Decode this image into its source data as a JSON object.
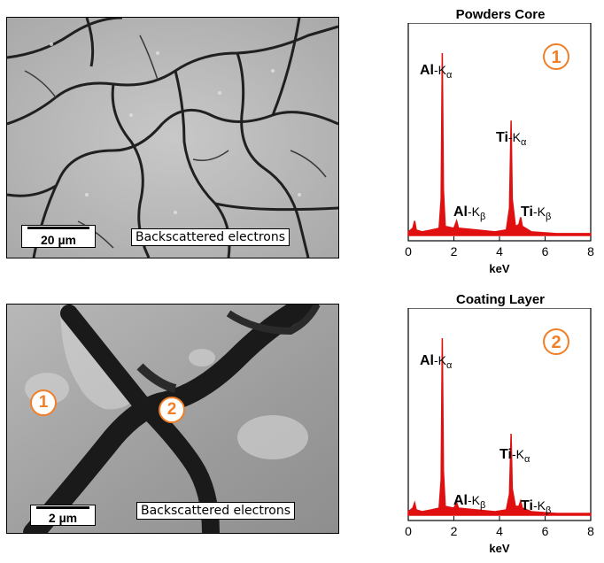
{
  "panels": [
    {
      "sem_caption": "Backscattered electrons",
      "scale_label": "20 µm",
      "markers": []
    },
    {
      "sem_caption": "Backscattered electrons",
      "scale_label": "2 µm",
      "markers": [
        "1",
        "2"
      ]
    }
  ],
  "chart_data": [
    {
      "type": "line",
      "title": "Powders Core",
      "xlabel": "keV",
      "ylabel": "",
      "xlim": [
        0,
        8
      ],
      "xticks": [
        0,
        2,
        4,
        6,
        8
      ],
      "y_axis_shown": false,
      "badge": "1",
      "color": "#e01010",
      "spectrum": [
        [
          0,
          0.02
        ],
        [
          0.2,
          0.04
        ],
        [
          0.28,
          0.08
        ],
        [
          0.35,
          0.03
        ],
        [
          0.6,
          0.02
        ],
        [
          1.0,
          0.03
        ],
        [
          1.35,
          0.04
        ],
        [
          1.44,
          0.2
        ],
        [
          1.49,
          1.0
        ],
        [
          1.54,
          0.25
        ],
        [
          1.62,
          0.05
        ],
        [
          2.0,
          0.04
        ],
        [
          2.12,
          0.08
        ],
        [
          2.2,
          0.04
        ],
        [
          3.0,
          0.03
        ],
        [
          3.8,
          0.02
        ],
        [
          4.3,
          0.03
        ],
        [
          4.44,
          0.15
        ],
        [
          4.51,
          0.63
        ],
        [
          4.56,
          0.2
        ],
        [
          4.7,
          0.05
        ],
        [
          4.85,
          0.06
        ],
        [
          4.93,
          0.1
        ],
        [
          5.0,
          0.05
        ],
        [
          5.4,
          0.02
        ],
        [
          6.5,
          0.01
        ],
        [
          8.0,
          0.01
        ]
      ],
      "peaks": [
        {
          "element": "Al",
          "line": "K",
          "sub": "α"
        },
        {
          "element": "Al",
          "line": "K",
          "sub": "β"
        },
        {
          "element": "Ti",
          "line": "K",
          "sub": "α"
        },
        {
          "element": "Ti",
          "line": "K",
          "sub": "β"
        }
      ]
    },
    {
      "type": "line",
      "title": "Coating Layer",
      "xlabel": "keV",
      "ylabel": "",
      "xlim": [
        0,
        8
      ],
      "xticks": [
        0,
        2,
        4,
        6,
        8
      ],
      "y_axis_shown": false,
      "badge": "2",
      "color": "#e01010",
      "spectrum": [
        [
          0,
          0.02
        ],
        [
          0.2,
          0.04
        ],
        [
          0.28,
          0.07
        ],
        [
          0.35,
          0.03
        ],
        [
          0.6,
          0.02
        ],
        [
          1.0,
          0.03
        ],
        [
          1.35,
          0.04
        ],
        [
          1.44,
          0.2
        ],
        [
          1.49,
          1.0
        ],
        [
          1.54,
          0.25
        ],
        [
          1.62,
          0.05
        ],
        [
          2.0,
          0.04
        ],
        [
          2.12,
          0.07
        ],
        [
          2.2,
          0.04
        ],
        [
          3.0,
          0.03
        ],
        [
          3.8,
          0.02
        ],
        [
          4.3,
          0.03
        ],
        [
          4.44,
          0.12
        ],
        [
          4.51,
          0.46
        ],
        [
          4.56,
          0.15
        ],
        [
          4.7,
          0.05
        ],
        [
          4.85,
          0.05
        ],
        [
          4.93,
          0.08
        ],
        [
          5.0,
          0.04
        ],
        [
          5.4,
          0.02
        ],
        [
          6.5,
          0.01
        ],
        [
          8.0,
          0.01
        ]
      ],
      "peaks": [
        {
          "element": "Al",
          "line": "K",
          "sub": "α"
        },
        {
          "element": "Al",
          "line": "K",
          "sub": "β"
        },
        {
          "element": "Ti",
          "line": "K",
          "sub": "α"
        },
        {
          "element": "Ti",
          "line": "K",
          "sub": "β"
        }
      ]
    }
  ]
}
